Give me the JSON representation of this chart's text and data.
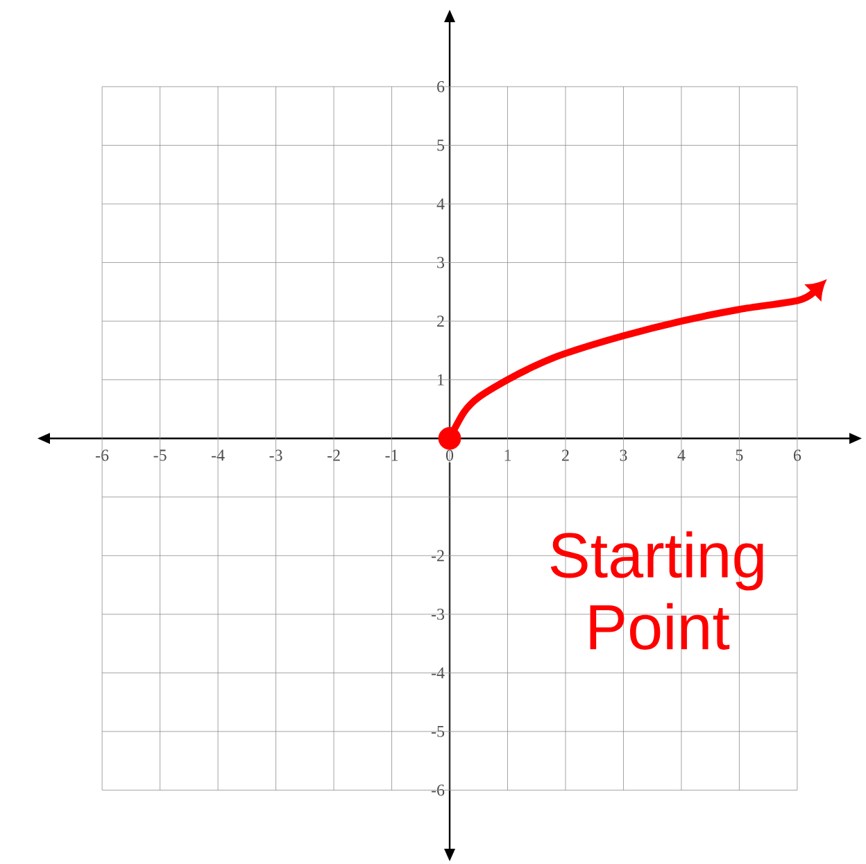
{
  "chart_data": {
    "type": "line",
    "series": [
      {
        "color": "#ff0000",
        "x": [
          0,
          0.25,
          0.5,
          1,
          1.5,
          2,
          3,
          4,
          5,
          6,
          6.27
        ],
        "values": [
          0,
          0.45,
          0.7,
          1,
          1.25,
          1.45,
          1.75,
          2,
          2.2,
          2.35,
          2.48
        ]
      },
      {
        "type": "scatter",
        "color": "#ff0000",
        "x": [
          0
        ],
        "values": [
          0
        ]
      }
    ],
    "xlim": [
      -6.9,
      6.9
    ],
    "ylim": [
      -7,
      7.1
    ],
    "xticks": [
      -6,
      -5,
      -4,
      -3,
      -2,
      -1,
      0,
      1,
      2,
      3,
      4,
      5,
      6
    ],
    "yticks": [
      -6,
      -5,
      -4,
      -3,
      -2,
      {
        "value": -1,
        "label": null
      },
      1,
      2,
      3,
      4,
      5,
      6
    ],
    "grid": true,
    "annotations": [
      "Starting Point"
    ]
  }
}
